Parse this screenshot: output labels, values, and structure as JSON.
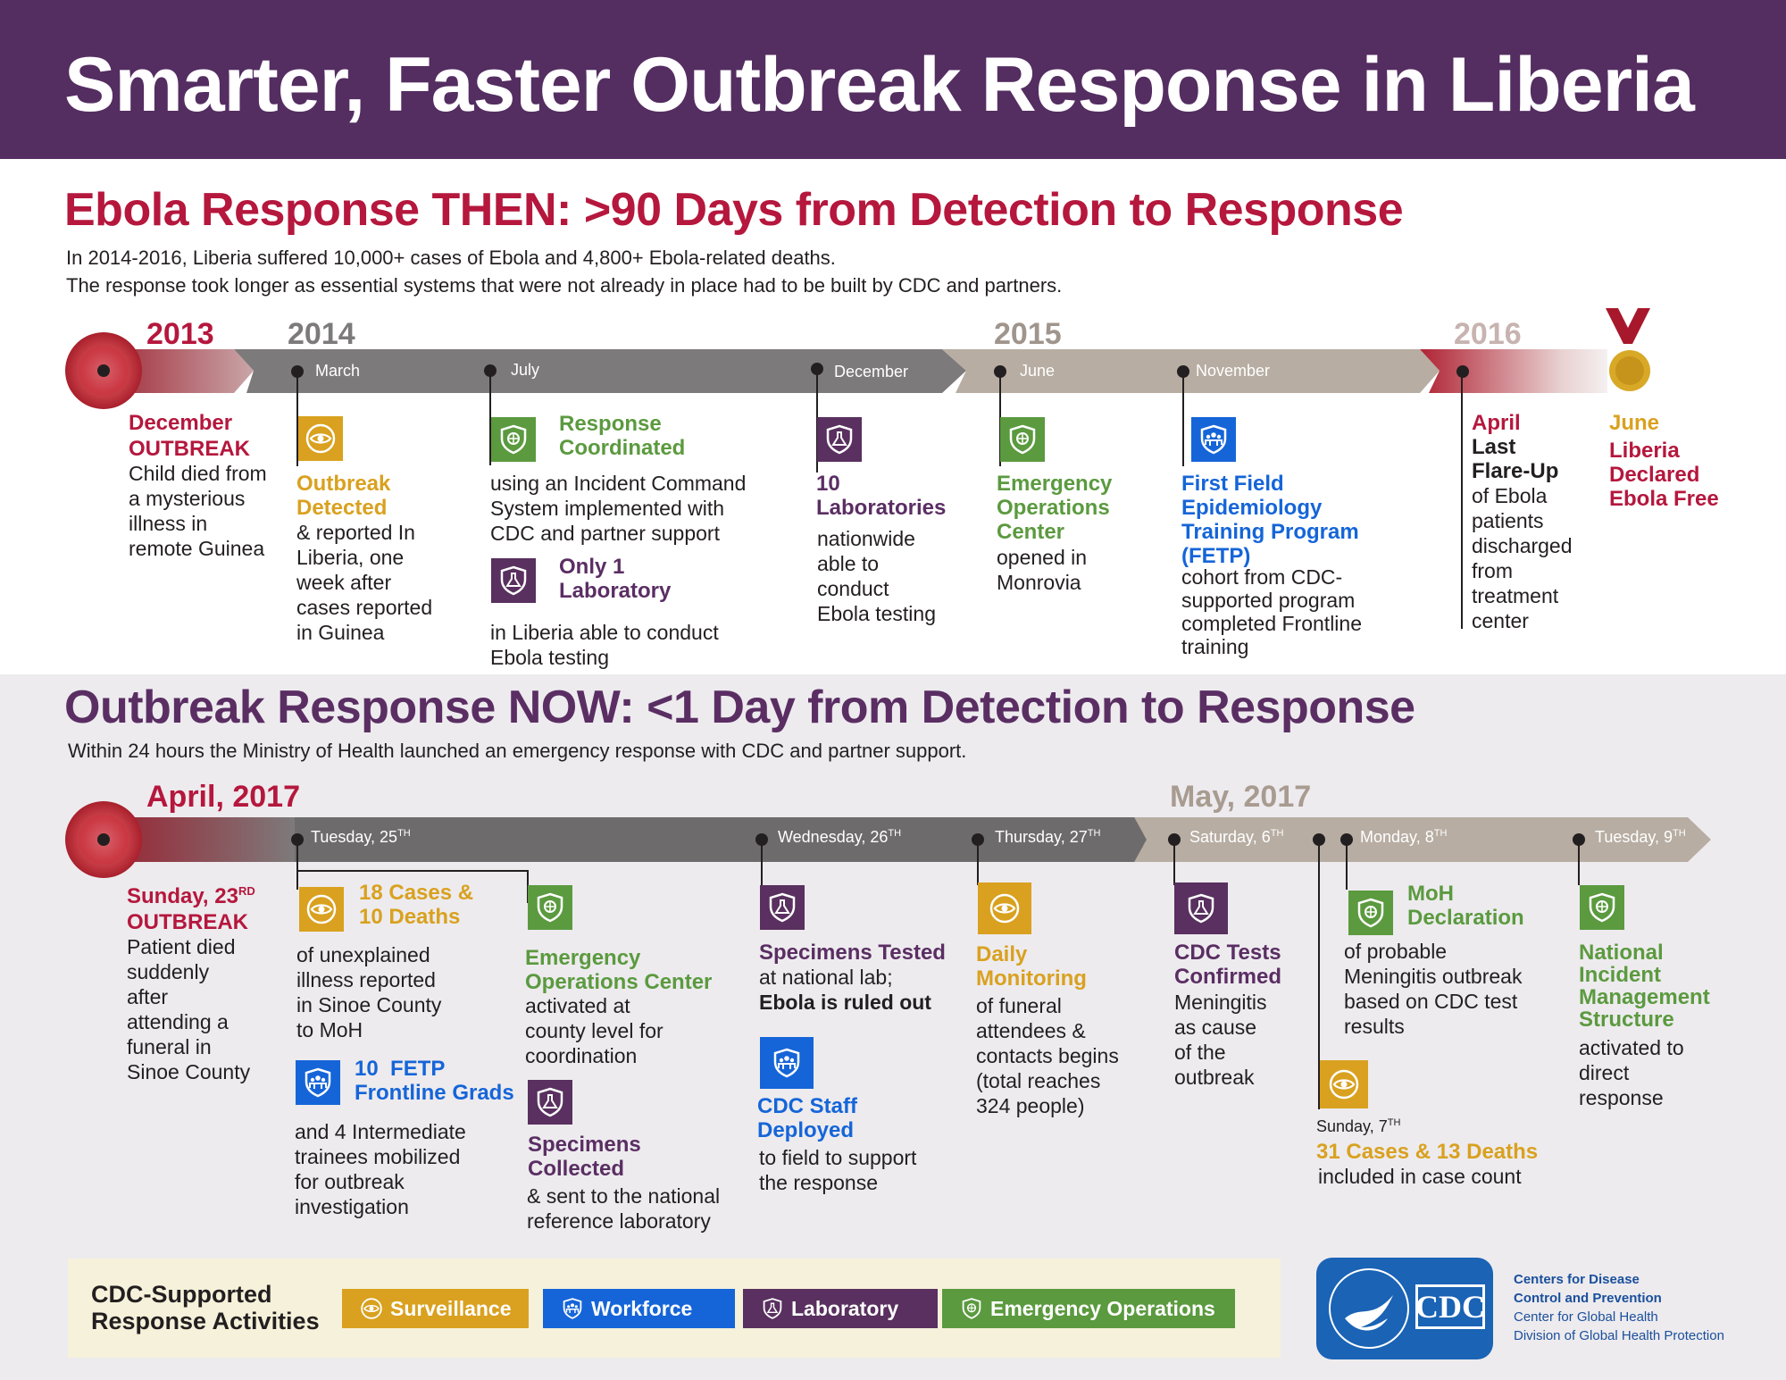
{
  "title": "Smarter, Faster Outbreak Response in Liberia",
  "then": {
    "heading": "Ebola Response THEN: >90 Days from Detection to Response",
    "intro1": "In 2014-2016, Liberia suffered 10,000+ cases of Ebola and 4,800+ Ebola-related deaths.",
    "intro2": "The response took longer as essential systems that were not already in place had to be built by CDC and partners.",
    "years": [
      "2013",
      "2014",
      "2015",
      "2016"
    ],
    "months": [
      "March",
      "July",
      "December",
      "June",
      "November"
    ],
    "events": {
      "outbreak": {
        "date": "December",
        "title": "OUTBREAK",
        "text": [
          "Child died from",
          "a mysterious",
          "illness in",
          "remote Guinea"
        ]
      },
      "detected": {
        "title": [
          "Outbreak",
          "Detected"
        ],
        "text": [
          "& reported In",
          "Liberia, one",
          "week after",
          "cases reported",
          "in Guinea"
        ]
      },
      "coordinated": {
        "title": [
          "Response",
          "Coordinated"
        ],
        "text": [
          "using an Incident Command",
          "System implemented with",
          "CDC and partner support"
        ]
      },
      "onelab": {
        "title": [
          "Only 1",
          "Laboratory"
        ],
        "text": [
          "in Liberia able to conduct",
          "Ebola testing"
        ]
      },
      "tenlabs": {
        "title": [
          "10",
          "Laboratories"
        ],
        "text": [
          "nationwide",
          "able to",
          "conduct",
          "Ebola testing"
        ]
      },
      "eoc": {
        "title": [
          "Emergency",
          "Operations",
          "Center"
        ],
        "text": [
          "opened in",
          "Monrovia"
        ]
      },
      "fetp": {
        "title": [
          "First Field",
          "Epidemiology",
          "Training Program",
          "(FETP)"
        ],
        "text": [
          "cohort from CDC-",
          "supported program",
          "completed Frontline",
          "training"
        ]
      },
      "flareup": {
        "date": "April",
        "title": [
          "Last",
          "Flare-Up"
        ],
        "text": [
          "of Ebola",
          "patients",
          "discharged",
          "from",
          "treatment",
          "center"
        ]
      },
      "ebolafree": {
        "date": "June",
        "title": [
          "Liberia",
          "Declared",
          "Ebola Free"
        ]
      }
    }
  },
  "now": {
    "heading": "Outbreak Response NOW:  <1 Day from Detection to Response",
    "intro": "Within 24 hours the Ministry of Health launched an emergency response with CDC and partner support.",
    "april": "April, 2017",
    "may": "May, 2017",
    "days": {
      "tue25": {
        "name": "Tuesday, 25",
        "sup": "TH"
      },
      "wed26": {
        "name": "Wednesday, 26",
        "sup": "TH"
      },
      "thu27": {
        "name": "Thursday, 27",
        "sup": "TH"
      },
      "sat6": {
        "name": "Saturday, 6",
        "sup": "TH"
      },
      "mon8": {
        "name": "Monday, 8",
        "sup": "TH"
      },
      "tue9": {
        "name": "Tuesday, 9",
        "sup": "TH"
      }
    },
    "events": {
      "outbreak": {
        "date": "Sunday, 23",
        "date_sup": "RD",
        "title": "OUTBREAK",
        "text": [
          "Patient died",
          "suddenly",
          "after",
          "attending a",
          "funeral in",
          "Sinoe County"
        ]
      },
      "cases18": {
        "title": [
          "18 Cases &",
          "10 Deaths"
        ],
        "text": [
          "of unexplained",
          "illness reported",
          "in Sinoe County",
          "to MoH"
        ]
      },
      "fetpgrads": {
        "title": [
          "10  FETP",
          "Frontline Grads"
        ],
        "text": [
          "and 4 Intermediate",
          "trainees mobilized",
          "for outbreak",
          "investigation"
        ]
      },
      "eoc": {
        "title": [
          "Emergency",
          "Operations Center"
        ],
        "text": [
          "activated at",
          "county level for",
          "coordination"
        ]
      },
      "specimens": {
        "title": [
          "Specimens",
          "Collected"
        ],
        "text": [
          "& sent to the national",
          "reference laboratory"
        ]
      },
      "tested": {
        "title": "Specimens Tested",
        "text": "at national lab;",
        "bold": "Ebola is ruled out"
      },
      "staff": {
        "title": [
          "CDC Staff",
          "Deployed"
        ],
        "text": [
          "to field to support",
          "the response"
        ]
      },
      "monitoring": {
        "title": [
          "Daily",
          "Monitoring"
        ],
        "text": [
          "of funeral",
          "attendees &",
          "contacts begins",
          "(total reaches",
          "324 people)"
        ]
      },
      "confirmed": {
        "title": [
          "CDC Tests",
          "Confirmed"
        ],
        "text": [
          "Meningitis",
          "as cause",
          "of the",
          "outbreak"
        ]
      },
      "sunday7": {
        "date": "Sunday, 7",
        "date_sup": "TH",
        "title": "31 Cases & 13 Deaths",
        "text": "included in case count"
      },
      "moh": {
        "title": [
          "MoH",
          "Declaration"
        ],
        "text": [
          "of probable",
          "Meningitis outbreak",
          "based on CDC test",
          "results"
        ]
      },
      "nims": {
        "title": [
          "National",
          "Incident",
          "Management",
          "Structure"
        ],
        "text": [
          "activated to",
          "direct",
          "response"
        ]
      }
    }
  },
  "legend": {
    "title": [
      "CDC-Supported",
      "Response Activities"
    ],
    "items": [
      "Surveillance",
      "Workforce",
      "Laboratory",
      "Emergency Operations"
    ],
    "colors": {
      "Surveillance": "#d9a11f",
      "Workforce": "#1565d8",
      "Laboratory": "#59305f",
      "Emergency Operations": "#5b9a3f"
    }
  },
  "cdc": {
    "logo_text": "CDC",
    "lines": [
      "Centers for Disease",
      "Control and Prevention",
      "Center for Global Health",
      "Division of Global Health Protection"
    ]
  }
}
